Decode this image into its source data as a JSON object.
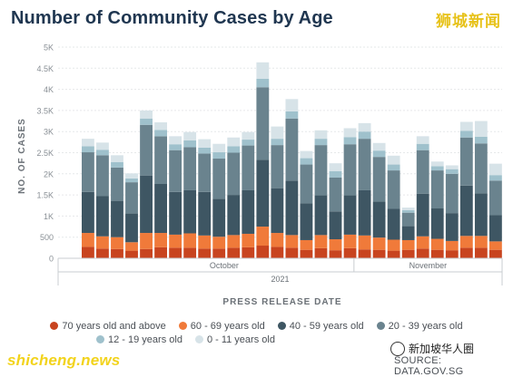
{
  "header": {
    "title": "Number of Community Cases by Age",
    "brand": "狮城新闻"
  },
  "watermark": {
    "left": "shicheng.news",
    "right": "新加坡华人圈"
  },
  "source": "SOURCE: DATA.GOV.SG",
  "colors": {
    "age70plus": "#c8441f",
    "age60_69": "#f07a3a",
    "age40_59": "#3e5663",
    "age20_39": "#6a838e",
    "age12_19": "#9fc1cc",
    "age0_11": "#d7e3e8"
  },
  "chart_data": {
    "type": "bar",
    "stacked": true,
    "title": "Number of Community Cases by Age",
    "ylabel": "NO. OF CASES",
    "xlabel": "PRESS RELEASE DATE",
    "ylim": [
      0,
      5000
    ],
    "yticks": [
      "0",
      "500",
      "1K",
      "1.5K",
      "2K",
      "2.5K",
      "3K",
      "3.5K",
      "4K",
      "4.5K",
      "5K"
    ],
    "x_month_labels": [
      "October",
      "November"
    ],
    "x_year_label": "2021",
    "grid": true,
    "legend_position": "bottom",
    "series": [
      {
        "name": "70 years old and above",
        "values": [
          270,
          230,
          220,
          180,
          220,
          260,
          250,
          250,
          230,
          230,
          250,
          260,
          300,
          270,
          250,
          200,
          240,
          190,
          240,
          210,
          200,
          180,
          200,
          230,
          200,
          190,
          250,
          250,
          200
        ]
      },
      {
        "name": "60 - 69 years old",
        "values": [
          330,
          290,
          280,
          200,
          380,
          340,
          310,
          340,
          310,
          280,
          300,
          320,
          450,
          330,
          300,
          230,
          310,
          260,
          320,
          330,
          290,
          260,
          230,
          290,
          260,
          220,
          280,
          280,
          200
        ]
      },
      {
        "name": "40 - 59 years old",
        "values": [
          970,
          950,
          860,
          680,
          1360,
          1160,
          1010,
          1020,
          1030,
          900,
          950,
          1030,
          1580,
          1060,
          1290,
          870,
          940,
          660,
          930,
          1070,
          850,
          730,
          330,
          1010,
          720,
          660,
          1190,
          1010,
          620
        ]
      },
      {
        "name": "20 - 39 years old",
        "values": [
          940,
          970,
          790,
          740,
          1200,
          1130,
          990,
          1020,
          910,
          950,
          1000,
          1060,
          1720,
          1020,
          1470,
          920,
          1190,
          800,
          1210,
          1220,
          1060,
          910,
          320,
          1030,
          900,
          930,
          1140,
          1180,
          820
        ]
      },
      {
        "name": "12 - 19 years old",
        "values": [
          140,
          130,
          130,
          90,
          150,
          150,
          140,
          160,
          140,
          150,
          150,
          140,
          200,
          150,
          170,
          150,
          150,
          150,
          170,
          170,
          150,
          140,
          60,
          150,
          100,
          110,
          160,
          160,
          130
        ]
      },
      {
        "name": "0 - 11 years old",
        "values": [
          180,
          170,
          160,
          120,
          190,
          180,
          190,
          200,
          200,
          200,
          210,
          180,
          390,
          290,
          290,
          170,
          200,
          190,
          210,
          200,
          180,
          210,
          60,
          180,
          110,
          90,
          210,
          370,
          270
        ]
      }
    ]
  }
}
